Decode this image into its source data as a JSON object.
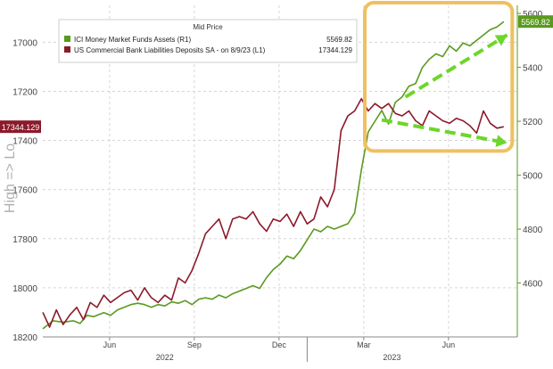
{
  "chart_data": {
    "type": "line",
    "title": "Mid Price",
    "ylabel_left": "High => Lo",
    "grid": true,
    "legend_placement": "top-left",
    "highlight_box": true,
    "x_ticks": [
      {
        "label": "Jun",
        "x": 2022.417
      },
      {
        "label": "Sep",
        "x": 2022.667
      },
      {
        "label": "Dec",
        "x": 2022.917
      },
      {
        "label": "Mar",
        "x": 2023.167
      },
      {
        "label": "Jun",
        "x": 2023.417
      }
    ],
    "year_labels": [
      {
        "label": "2022",
        "x": 2022.58
      },
      {
        "label": "2023",
        "x": 2023.25
      }
    ],
    "xlim": [
      2022.22,
      2023.62
    ],
    "left_axis": {
      "inverted": true,
      "ylim": [
        18200,
        16850
      ],
      "ticks": [
        17000,
        17200,
        17400,
        17600,
        17800,
        18000,
        18200
      ],
      "tick_labels": [
        "17000",
        "17200",
        "17400",
        "17600",
        "17800",
        "18000",
        "18200"
      ],
      "last_value_label": "17344.129"
    },
    "right_axis": {
      "ylim": [
        4400,
        5630
      ],
      "ticks": [
        4600,
        4800,
        5000,
        5200,
        5400,
        5600
      ],
      "tick_labels": [
        "4600",
        "4800",
        "5000",
        "5200",
        "5400",
        "5600"
      ],
      "last_value_label": "5569.82"
    },
    "series": [
      {
        "name": "ICI Money Market Funds Assets (R1)",
        "legend_value": "5569.82",
        "axis": "right",
        "color": "#5a9a1e",
        "x": [
          2022.22,
          2022.25,
          2022.28,
          2022.31,
          2022.33,
          2022.35,
          2022.37,
          2022.4,
          2022.42,
          2022.44,
          2022.46,
          2022.48,
          2022.5,
          2022.52,
          2022.54,
          2022.56,
          2022.58,
          2022.6,
          2022.62,
          2022.64,
          2022.66,
          2022.68,
          2022.7,
          2022.72,
          2022.74,
          2022.76,
          2022.78,
          2022.8,
          2022.82,
          2022.84,
          2022.86,
          2022.88,
          2022.9,
          2022.92,
          2022.94,
          2022.96,
          2022.98,
          2023.0,
          2023.02,
          2023.04,
          2023.06,
          2023.08,
          2023.1,
          2023.12,
          2023.14,
          2023.16,
          2023.18,
          2023.2,
          2023.22,
          2023.24,
          2023.26,
          2023.28,
          2023.3,
          2023.32,
          2023.34,
          2023.36,
          2023.38,
          2023.4,
          2023.42,
          2023.44,
          2023.46,
          2023.48,
          2023.5,
          2023.52,
          2023.54,
          2023.56,
          2023.58
        ],
        "values": [
          4430,
          4460,
          4455,
          4460,
          4450,
          4480,
          4475,
          4490,
          4480,
          4500,
          4510,
          4520,
          4525,
          4520,
          4510,
          4520,
          4515,
          4530,
          4525,
          4535,
          4520,
          4540,
          4545,
          4540,
          4555,
          4545,
          4560,
          4570,
          4580,
          4590,
          4580,
          4620,
          4650,
          4670,
          4700,
          4690,
          4720,
          4760,
          4800,
          4790,
          4810,
          4800,
          4810,
          4820,
          4860,
          5020,
          5160,
          5200,
          5240,
          5190,
          5270,
          5290,
          5330,
          5340,
          5400,
          5430,
          5450,
          5440,
          5480,
          5460,
          5490,
          5480,
          5500,
          5520,
          5540,
          5550,
          5569.82
        ]
      },
      {
        "name": "US Commercial Bank Liabilities Deposits SA - on 8/9/23 (L1)",
        "legend_value": "17344.129",
        "axis": "left",
        "color": "#8b1a2b",
        "x": [
          2022.22,
          2022.24,
          2022.26,
          2022.28,
          2022.3,
          2022.32,
          2022.34,
          2022.36,
          2022.38,
          2022.4,
          2022.42,
          2022.44,
          2022.46,
          2022.48,
          2022.5,
          2022.52,
          2022.54,
          2022.56,
          2022.58,
          2022.6,
          2022.62,
          2022.64,
          2022.66,
          2022.68,
          2022.7,
          2022.72,
          2022.74,
          2022.76,
          2022.78,
          2022.8,
          2022.82,
          2022.84,
          2022.86,
          2022.88,
          2022.9,
          2022.92,
          2022.94,
          2022.96,
          2022.98,
          2023.0,
          2023.02,
          2023.04,
          2023.06,
          2023.08,
          2023.1,
          2023.12,
          2023.14,
          2023.16,
          2023.18,
          2023.2,
          2023.22,
          2023.24,
          2023.26,
          2023.28,
          2023.3,
          2023.32,
          2023.34,
          2023.36,
          2023.38,
          2023.4,
          2023.42,
          2023.44,
          2023.46,
          2023.48,
          2023.5,
          2023.52,
          2023.54,
          2023.56,
          2023.58
        ],
        "values": [
          18100,
          18160,
          18090,
          18150,
          18110,
          18080,
          18130,
          18060,
          18080,
          18030,
          18060,
          18040,
          18020,
          18010,
          18050,
          18000,
          18040,
          18060,
          18030,
          18050,
          17960,
          17980,
          17930,
          17860,
          17780,
          17750,
          17720,
          17800,
          17720,
          17710,
          17720,
          17690,
          17740,
          17770,
          17720,
          17730,
          17700,
          17750,
          17690,
          17740,
          17720,
          17630,
          17670,
          17600,
          17360,
          17300,
          17280,
          17230,
          17280,
          17250,
          17270,
          17250,
          17290,
          17300,
          17280,
          17320,
          17340,
          17280,
          17300,
          17320,
          17330,
          17310,
          17320,
          17340,
          17370,
          17280,
          17330,
          17350,
          17344.129
        ]
      }
    ]
  }
}
